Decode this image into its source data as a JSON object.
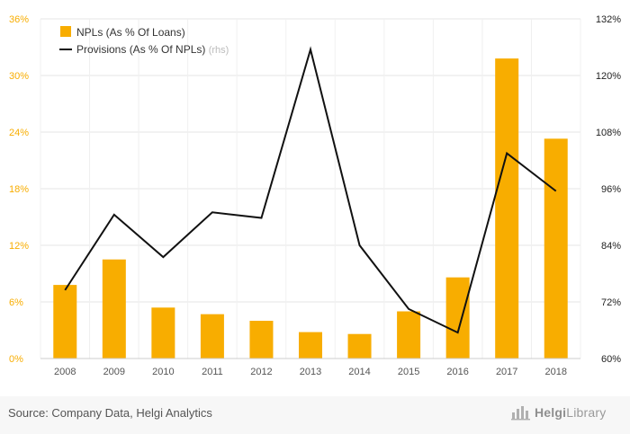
{
  "chart_data": {
    "type": "bar",
    "categories": [
      "2008",
      "2009",
      "2010",
      "2011",
      "2012",
      "2013",
      "2014",
      "2015",
      "2016",
      "2017",
      "2018"
    ],
    "series": [
      {
        "name": "NPLs (As % Of Loans)",
        "kind": "bar",
        "axis": "left",
        "color": "#f8ad00",
        "values": [
          7.8,
          10.5,
          5.4,
          4.7,
          4.0,
          2.8,
          2.6,
          5.0,
          8.6,
          31.8,
          23.3
        ]
      },
      {
        "name": "Provisions (As % Of NPLs)",
        "axis_note": "(rhs)",
        "kind": "line",
        "axis": "right",
        "color": "#111111",
        "values": [
          74.5,
          90.5,
          81.5,
          91,
          89.8,
          125.5,
          84,
          70.5,
          65.5,
          103.5,
          95.5
        ]
      }
    ],
    "y_left": {
      "min": 0,
      "max": 36,
      "ticks": [
        "0%",
        "6%",
        "12%",
        "18%",
        "24%",
        "30%",
        "36%"
      ],
      "values": [
        0,
        6,
        12,
        18,
        24,
        30,
        36
      ],
      "color": "#f8ad00"
    },
    "y_right": {
      "min": 60,
      "max": 132,
      "ticks": [
        "60%",
        "72%",
        "84%",
        "96%",
        "108%",
        "120%",
        "132%"
      ],
      "values": [
        60,
        72,
        84,
        96,
        108,
        120,
        132
      ],
      "color": "#222222"
    },
    "grid": true,
    "legend_position": "top-left"
  },
  "footer": {
    "source": "Source: Company Data, Helgi Analytics",
    "brand_prefix": "Helgi",
    "brand_suffix": "Library",
    "brand_icon": "bar-chart-logo-icon"
  }
}
